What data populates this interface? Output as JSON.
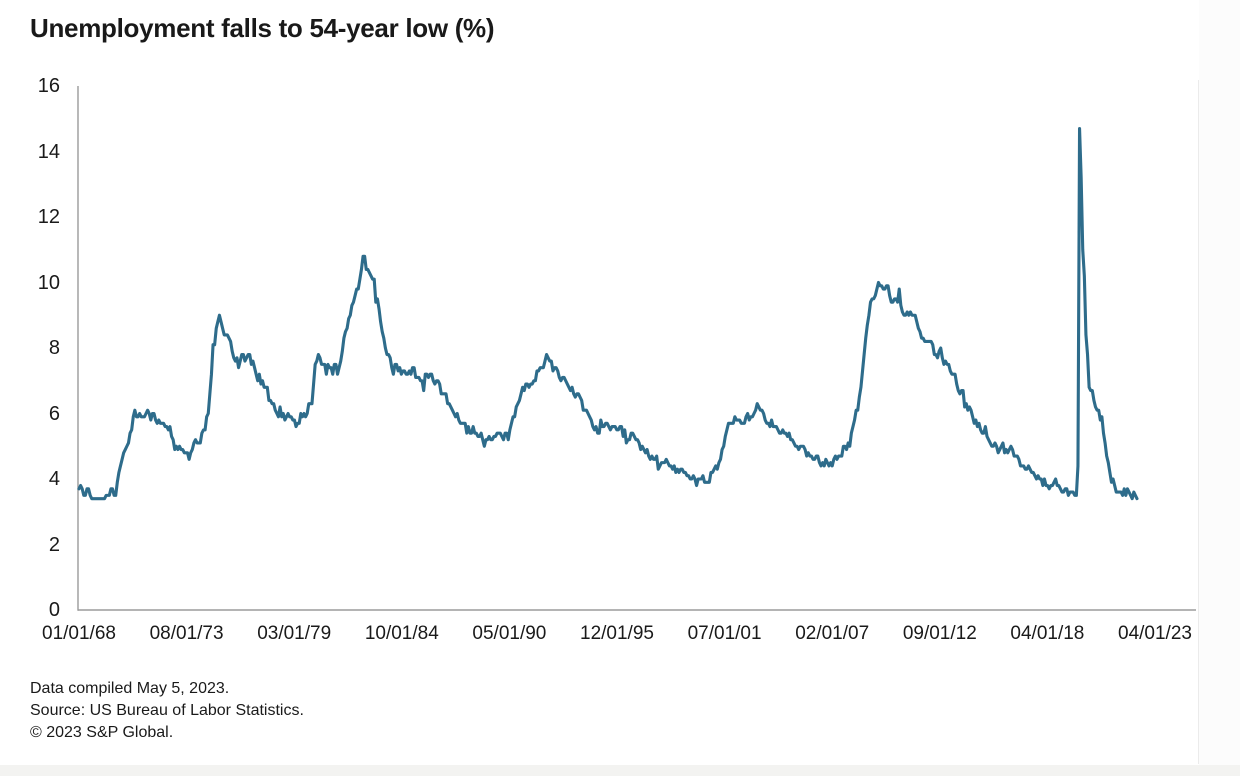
{
  "title": "Unemployment falls to 54-year low (%)",
  "footer": {
    "line1": "Data compiled May 5, 2023.",
    "line2": "Source: US Bureau of Labor Statistics.",
    "line3": "© 2023 S&P Global."
  },
  "colors": {
    "line": "#2e6c8b",
    "axis": "#9b9b9b",
    "text": "#1a1a1a",
    "edge_line": "#ebebeb",
    "bottom_strip": "#f3f3f1"
  },
  "chart_data": {
    "type": "line",
    "title": "Unemployment falls to 54-year low (%)",
    "xlabel": "",
    "ylabel": "",
    "ylim": [
      0,
      16
    ],
    "grid": "off",
    "legend": "none",
    "y_ticks": [
      0,
      2,
      4,
      6,
      8,
      10,
      12,
      14,
      16
    ],
    "x_tick_labels": [
      "01/01/68",
      "08/01/73",
      "03/01/79",
      "10/01/84",
      "05/01/90",
      "12/01/95",
      "07/01/01",
      "02/01/07",
      "09/01/12",
      "04/01/18",
      "04/01/23"
    ],
    "series": [
      {
        "name": "Unemployment rate (%)",
        "frequency": "monthly",
        "first_point": "01/01/68",
        "last_point": "04/01/23",
        "values_by_year": {
          "1968": [
            3.7,
            3.8,
            3.7,
            3.5,
            3.5,
            3.7,
            3.7,
            3.5,
            3.4,
            3.4,
            3.4,
            3.4
          ],
          "1969": [
            3.4,
            3.4,
            3.4,
            3.4,
            3.4,
            3.5,
            3.5,
            3.5,
            3.7,
            3.7,
            3.5,
            3.5
          ],
          "1970": [
            3.9,
            4.2,
            4.4,
            4.6,
            4.8,
            4.9,
            5.0,
            5.1,
            5.4,
            5.5,
            5.9,
            6.1
          ],
          "1971": [
            5.9,
            5.9,
            6.0,
            5.9,
            5.9,
            5.9,
            6.0,
            6.1,
            6.0,
            5.8,
            6.0,
            6.0
          ],
          "1972": [
            5.8,
            5.7,
            5.8,
            5.7,
            5.7,
            5.7,
            5.6,
            5.6,
            5.5,
            5.6,
            5.3,
            5.2
          ],
          "1973": [
            4.9,
            5.0,
            4.9,
            5.0,
            4.9,
            4.9,
            4.8,
            4.8,
            4.8,
            4.6,
            4.8,
            4.9
          ],
          "1974": [
            5.1,
            5.2,
            5.1,
            5.1,
            5.1,
            5.4,
            5.5,
            5.5,
            5.9,
            6.0,
            6.6,
            7.2
          ],
          "1975": [
            8.1,
            8.1,
            8.6,
            8.8,
            9.0,
            8.8,
            8.6,
            8.4,
            8.4,
            8.4,
            8.3,
            8.2
          ],
          "1976": [
            7.9,
            7.7,
            7.6,
            7.7,
            7.4,
            7.6,
            7.8,
            7.8,
            7.6,
            7.7,
            7.8,
            7.8
          ],
          "1977": [
            7.5,
            7.6,
            7.4,
            7.2,
            7.0,
            7.2,
            6.9,
            7.0,
            6.8,
            6.8,
            6.8,
            6.4
          ],
          "1978": [
            6.4,
            6.3,
            6.3,
            6.1,
            6.0,
            5.9,
            6.2,
            5.9,
            6.0,
            5.8,
            5.9,
            6.0
          ],
          "1979": [
            5.9,
            5.9,
            5.8,
            5.8,
            5.6,
            5.7,
            5.7,
            6.0,
            5.9,
            6.0,
            5.9,
            6.0
          ],
          "1980": [
            6.3,
            6.3,
            6.3,
            6.9,
            7.5,
            7.6,
            7.8,
            7.7,
            7.5,
            7.5,
            7.5,
            7.2
          ],
          "1981": [
            7.5,
            7.4,
            7.4,
            7.2,
            7.5,
            7.5,
            7.2,
            7.4,
            7.6,
            7.9,
            8.3,
            8.5
          ],
          "1982": [
            8.6,
            8.9,
            9.0,
            9.3,
            9.4,
            9.6,
            9.8,
            9.8,
            10.1,
            10.4,
            10.8,
            10.8
          ],
          "1983": [
            10.4,
            10.4,
            10.3,
            10.2,
            10.1,
            10.1,
            9.4,
            9.5,
            9.2,
            8.8,
            8.5,
            8.3
          ],
          "1984": [
            8.0,
            7.8,
            7.8,
            7.7,
            7.4,
            7.2,
            7.5,
            7.5,
            7.3,
            7.4,
            7.2,
            7.3
          ],
          "1985": [
            7.3,
            7.2,
            7.2,
            7.3,
            7.2,
            7.4,
            7.4,
            7.1,
            7.1,
            7.1,
            7.0,
            7.0
          ],
          "1986": [
            6.7,
            7.2,
            7.2,
            7.1,
            7.2,
            7.2,
            7.0,
            6.9,
            7.0,
            7.0,
            6.9,
            6.6
          ],
          "1987": [
            6.6,
            6.6,
            6.6,
            6.3,
            6.3,
            6.2,
            6.1,
            6.0,
            5.9,
            6.0,
            5.8,
            5.7
          ],
          "1988": [
            5.7,
            5.7,
            5.7,
            5.4,
            5.6,
            5.4,
            5.4,
            5.6,
            5.4,
            5.4,
            5.3,
            5.3
          ],
          "1989": [
            5.4,
            5.2,
            5.0,
            5.2,
            5.2,
            5.3,
            5.2,
            5.2,
            5.3,
            5.3,
            5.4,
            5.4
          ],
          "1990": [
            5.4,
            5.3,
            5.2,
            5.4,
            5.4,
            5.2,
            5.5,
            5.7,
            5.9,
            5.9,
            6.2,
            6.3
          ],
          "1991": [
            6.4,
            6.6,
            6.8,
            6.7,
            6.9,
            6.9,
            6.8,
            6.9,
            6.9,
            7.0,
            7.0,
            7.3
          ],
          "1992": [
            7.3,
            7.4,
            7.4,
            7.4,
            7.6,
            7.8,
            7.7,
            7.6,
            7.6,
            7.3,
            7.4,
            7.4
          ],
          "1993": [
            7.3,
            7.1,
            7.0,
            7.1,
            7.1,
            7.0,
            6.9,
            6.8,
            6.7,
            6.8,
            6.6,
            6.5
          ],
          "1994": [
            6.6,
            6.6,
            6.5,
            6.4,
            6.1,
            6.1,
            6.1,
            6.0,
            5.9,
            5.8,
            5.6,
            5.5
          ],
          "1995": [
            5.6,
            5.4,
            5.4,
            5.8,
            5.6,
            5.6,
            5.7,
            5.7,
            5.6,
            5.5,
            5.6,
            5.6
          ],
          "1996": [
            5.6,
            5.5,
            5.5,
            5.6,
            5.6,
            5.3,
            5.5,
            5.1,
            5.2,
            5.2,
            5.4,
            5.4
          ],
          "1997": [
            5.3,
            5.2,
            5.2,
            5.1,
            4.9,
            5.0,
            4.9,
            4.8,
            4.9,
            4.7,
            4.6,
            4.7
          ],
          "1998": [
            4.6,
            4.6,
            4.7,
            4.3,
            4.4,
            4.5,
            4.5,
            4.5,
            4.6,
            4.5,
            4.4,
            4.4
          ],
          "1999": [
            4.3,
            4.4,
            4.2,
            4.3,
            4.2,
            4.3,
            4.3,
            4.2,
            4.2,
            4.1,
            4.1,
            4.0
          ],
          "2000": [
            4.0,
            4.1,
            4.0,
            3.8,
            4.0,
            4.0,
            4.0,
            4.1,
            3.9,
            3.9,
            3.9,
            3.9
          ],
          "2001": [
            4.2,
            4.2,
            4.3,
            4.4,
            4.3,
            4.5,
            4.6,
            4.9,
            5.0,
            5.3,
            5.5,
            5.7
          ],
          "2002": [
            5.7,
            5.7,
            5.7,
            5.9,
            5.8,
            5.8,
            5.8,
            5.7,
            5.7,
            5.7,
            5.9,
            6.0
          ],
          "2003": [
            5.8,
            5.9,
            5.9,
            6.0,
            6.1,
            6.3,
            6.2,
            6.1,
            6.1,
            6.0,
            5.8,
            5.7
          ],
          "2004": [
            5.7,
            5.6,
            5.8,
            5.6,
            5.6,
            5.6,
            5.5,
            5.4,
            5.4,
            5.5,
            5.4,
            5.4
          ],
          "2005": [
            5.3,
            5.4,
            5.2,
            5.2,
            5.1,
            5.0,
            5.0,
            4.9,
            5.0,
            5.0,
            5.0,
            4.9
          ],
          "2006": [
            4.7,
            4.8,
            4.7,
            4.7,
            4.6,
            4.6,
            4.7,
            4.7,
            4.5,
            4.4,
            4.5,
            4.4
          ],
          "2007": [
            4.6,
            4.5,
            4.4,
            4.5,
            4.4,
            4.6,
            4.7,
            4.6,
            4.7,
            4.7,
            4.7,
            5.0
          ],
          "2008": [
            5.0,
            4.9,
            5.1,
            5.0,
            5.4,
            5.6,
            5.8,
            6.1,
            6.1,
            6.5,
            6.8,
            7.3
          ],
          "2009": [
            7.8,
            8.3,
            8.7,
            9.0,
            9.4,
            9.5,
            9.5,
            9.6,
            9.8,
            10.0,
            9.9,
            9.9
          ],
          "2010": [
            9.8,
            9.8,
            9.9,
            9.9,
            9.6,
            9.4,
            9.4,
            9.5,
            9.5,
            9.4,
            9.8,
            9.3
          ],
          "2011": [
            9.1,
            9.0,
            9.0,
            9.1,
            9.0,
            9.1,
            9.0,
            9.0,
            9.0,
            8.8,
            8.6,
            8.5
          ],
          "2012": [
            8.3,
            8.3,
            8.2,
            8.2,
            8.2,
            8.2,
            8.2,
            8.1,
            7.8,
            7.8,
            7.7,
            7.9
          ],
          "2013": [
            8.0,
            7.7,
            7.5,
            7.6,
            7.5,
            7.5,
            7.3,
            7.2,
            7.2,
            7.2,
            6.9,
            6.7
          ],
          "2014": [
            6.6,
            6.7,
            6.7,
            6.2,
            6.3,
            6.1,
            6.2,
            6.1,
            5.9,
            5.7,
            5.8,
            5.6
          ],
          "2015": [
            5.7,
            5.5,
            5.4,
            5.4,
            5.6,
            5.3,
            5.2,
            5.1,
            5.0,
            5.0,
            5.1,
            5.0
          ],
          "2016": [
            4.8,
            4.9,
            5.0,
            5.1,
            4.8,
            4.9,
            4.8,
            4.9,
            5.0,
            4.9,
            4.7,
            4.7
          ],
          "2017": [
            4.7,
            4.6,
            4.4,
            4.4,
            4.4,
            4.3,
            4.3,
            4.4,
            4.3,
            4.2,
            4.2,
            4.1
          ],
          "2018": [
            4.0,
            4.1,
            4.0,
            4.0,
            3.8,
            4.0,
            3.8,
            3.8,
            3.7,
            3.8,
            3.8,
            3.9
          ],
          "2019": [
            4.0,
            3.8,
            3.8,
            3.7,
            3.6,
            3.6,
            3.7,
            3.7,
            3.5,
            3.6,
            3.6,
            3.6
          ],
          "2020": [
            3.5,
            3.5,
            4.4,
            14.7,
            13.2,
            11.0,
            10.2,
            8.4,
            7.8,
            6.8,
            6.7,
            6.7
          ],
          "2021": [
            6.4,
            6.2,
            6.1,
            6.1,
            5.8,
            5.9,
            5.4,
            5.1,
            4.7,
            4.5,
            4.2,
            3.9
          ],
          "2022": [
            4.0,
            3.8,
            3.6,
            3.6,
            3.6,
            3.6,
            3.5,
            3.7,
            3.5,
            3.7,
            3.6,
            3.5
          ],
          "2023": [
            3.4,
            3.6,
            3.5,
            3.4
          ]
        }
      }
    ]
  }
}
